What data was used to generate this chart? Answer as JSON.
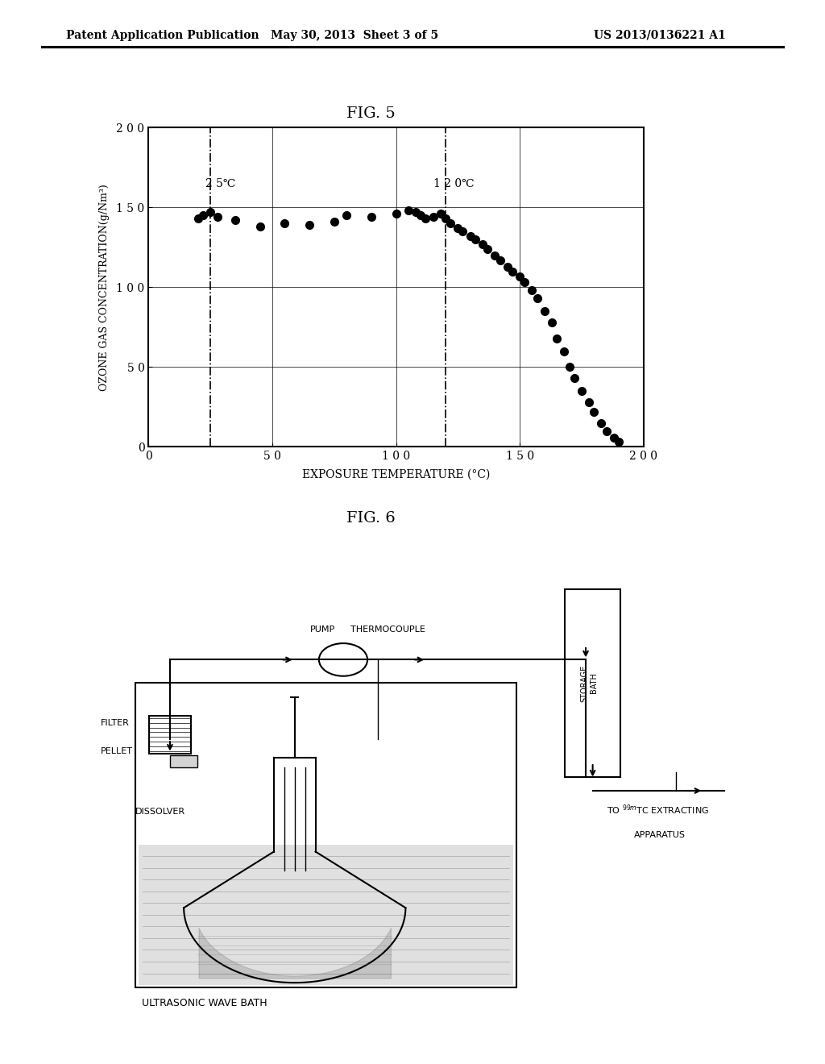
{
  "header_left": "Patent Application Publication",
  "header_center": "May 30, 2013  Sheet 3 of 5",
  "header_right": "US 2013/0136221 A1",
  "fig5_title": "FIG. 5",
  "fig5_xlabel": "EXPOSURE TEMPERATURE (°C)",
  "fig5_ylabel": "OZONE GAS CONCENTRATION(g/Nm³)",
  "fig5_xlim": [
    0,
    200
  ],
  "fig5_ylim": [
    0,
    200
  ],
  "fig5_xticks": [
    0,
    50,
    100,
    150,
    200
  ],
  "fig5_yticks": [
    0,
    50,
    100,
    150,
    200
  ],
  "fig5_xticklabels": [
    "0",
    "5 0",
    "1 0 0",
    "1 5 0",
    "2 0 0"
  ],
  "fig5_yticklabels": [
    "0",
    "5 0",
    "1 0 0",
    "1 5 0",
    "2 0 0"
  ],
  "fig5_vline1": 25,
  "fig5_vline2": 120,
  "fig5_label1": "2 5℃",
  "fig5_label2": "1 2 0℃",
  "fig5_data_x": [
    20,
    22,
    25,
    28,
    35,
    45,
    55,
    65,
    75,
    80,
    90,
    100,
    105,
    108,
    110,
    112,
    115,
    118,
    120,
    122,
    125,
    127,
    130,
    132,
    135,
    137,
    140,
    142,
    145,
    147,
    150,
    152,
    155,
    157,
    160,
    163,
    165,
    168,
    170,
    172,
    175,
    178,
    180,
    183,
    185,
    188,
    190
  ],
  "fig5_data_y": [
    143,
    145,
    147,
    144,
    142,
    138,
    140,
    139,
    141,
    145,
    144,
    146,
    148,
    147,
    145,
    143,
    144,
    146,
    143,
    140,
    137,
    135,
    132,
    130,
    127,
    124,
    120,
    117,
    113,
    110,
    107,
    103,
    98,
    93,
    85,
    78,
    68,
    60,
    50,
    43,
    35,
    28,
    22,
    15,
    10,
    6,
    3
  ],
  "fig6_title": "FIG. 6",
  "background_color": "#ffffff",
  "text_color": "#000000"
}
